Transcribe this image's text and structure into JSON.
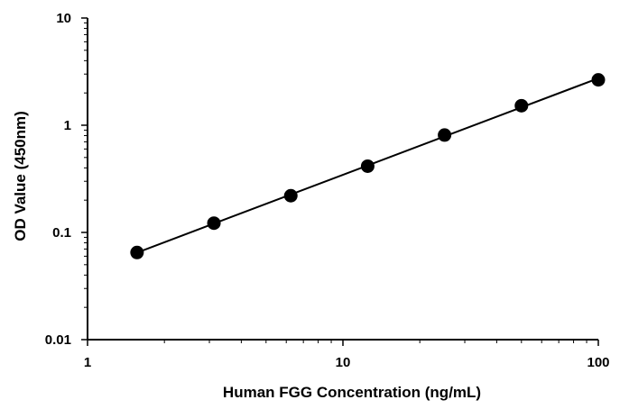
{
  "chart_data": {
    "type": "scatter",
    "title": "",
    "xlabel": "Human FGG Concentration (ng/mL)",
    "ylabel": "OD Value (450nm)",
    "x_scale": "log",
    "y_scale": "log",
    "xlim": [
      1,
      100
    ],
    "ylim": [
      0.01,
      10
    ],
    "x_ticks": [
      1,
      10,
      100
    ],
    "x_tick_labels": [
      "1",
      "10",
      "100"
    ],
    "y_ticks": [
      0.01,
      0.1,
      1,
      10
    ],
    "y_tick_labels": [
      "0.01",
      "0.1",
      "1",
      "10"
    ],
    "grid": false,
    "legend": "none",
    "series": [
      {
        "x": [
          1.5625,
          3.125,
          6.25,
          12.5,
          25,
          50,
          100
        ],
        "y": [
          0.065,
          0.122,
          0.22,
          0.415,
          0.81,
          1.52,
          2.65
        ],
        "marker_color": "#000000",
        "fit_line": "power-law trendline",
        "line_color": "#000000"
      }
    ]
  }
}
